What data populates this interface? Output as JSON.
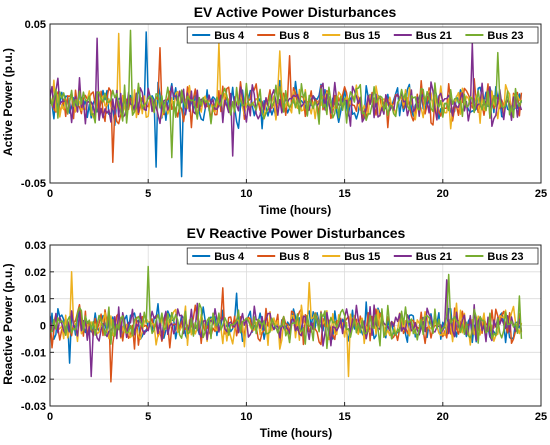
{
  "chart_data": [
    {
      "type": "line",
      "title": "EV Active Power Disturbances",
      "xlabel": "Time (hours)",
      "ylabel": "Active Power (p.u.)",
      "xlim": [
        0,
        25
      ],
      "ylim": [
        -0.05,
        0.05
      ],
      "xticks": [
        "0",
        "5",
        "10",
        "15",
        "20",
        "25"
      ],
      "yticks": [
        "-0.05",
        "0.05"
      ],
      "grid": true,
      "legend_position": "top-right",
      "legend_orientation": "horizontal",
      "sampling": {
        "x_start": 0,
        "x_end": 24,
        "x_step": 0.1,
        "approximate": true
      },
      "series": [
        {
          "name": "Bus 4",
          "color": "#0072BD",
          "spread": 0.011,
          "extremes": [
            [
              4.9,
              0.045
            ],
            [
              6.7,
              -0.046
            ],
            [
              5.4,
              -0.04
            ]
          ]
        },
        {
          "name": "Bus 8",
          "color": "#D95319",
          "spread": 0.011,
          "extremes": [
            [
              3.2,
              -0.037
            ],
            [
              5.6,
              0.035
            ],
            [
              12.2,
              0.03
            ]
          ]
        },
        {
          "name": "Bus 15",
          "color": "#EDB120",
          "spread": 0.011,
          "extremes": [
            [
              3.5,
              0.044
            ],
            [
              8.6,
              0.038
            ],
            [
              11.7,
              0.033
            ]
          ]
        },
        {
          "name": "Bus 21",
          "color": "#7E2F8E",
          "spread": 0.011,
          "extremes": [
            [
              2.4,
              0.041
            ],
            [
              21.5,
              0.038
            ],
            [
              9.3,
              -0.033
            ]
          ]
        },
        {
          "name": "Bus 23",
          "color": "#77AC30",
          "spread": 0.011,
          "extremes": [
            [
              4.1,
              0.046
            ],
            [
              22.8,
              0.032
            ],
            [
              6.2,
              -0.034
            ]
          ]
        }
      ]
    },
    {
      "type": "line",
      "title": "EV Reactive Power Disturbances",
      "xlabel": "Time (hours)",
      "ylabel": "Reactive Power (p.u.)",
      "xlim": [
        0,
        25
      ],
      "ylim": [
        -0.03,
        0.03
      ],
      "xticks": [
        "0",
        "5",
        "10",
        "15",
        "20",
        "25"
      ],
      "yticks": [
        "-0.03",
        "-0.02",
        "-0.01",
        "0",
        "0.01",
        "0.02",
        "0.03"
      ],
      "grid": true,
      "legend_position": "top-right",
      "legend_orientation": "horizontal",
      "sampling": {
        "x_start": 0,
        "x_end": 24,
        "x_step": 0.1,
        "approximate": true
      },
      "series": [
        {
          "name": "Bus 4",
          "color": "#0072BD",
          "spread": 0.006,
          "extremes": [
            [
              1.0,
              -0.014
            ],
            [
              9.5,
              0.012
            ]
          ]
        },
        {
          "name": "Bus 8",
          "color": "#D95319",
          "spread": 0.006,
          "extremes": [
            [
              3.1,
              -0.021
            ],
            [
              8.8,
              0.014
            ]
          ]
        },
        {
          "name": "Bus 15",
          "color": "#EDB120",
          "spread": 0.006,
          "extremes": [
            [
              1.1,
              0.02
            ],
            [
              13.2,
              0.016
            ],
            [
              15.2,
              -0.019
            ]
          ]
        },
        {
          "name": "Bus 21",
          "color": "#7E2F8E",
          "spread": 0.006,
          "extremes": [
            [
              2.1,
              -0.019
            ],
            [
              20.2,
              0.017
            ]
          ]
        },
        {
          "name": "Bus 23",
          "color": "#77AC30",
          "spread": 0.006,
          "extremes": [
            [
              5.0,
              0.022
            ],
            [
              20.3,
              0.019
            ],
            [
              23.9,
              0.011
            ]
          ]
        }
      ]
    }
  ]
}
